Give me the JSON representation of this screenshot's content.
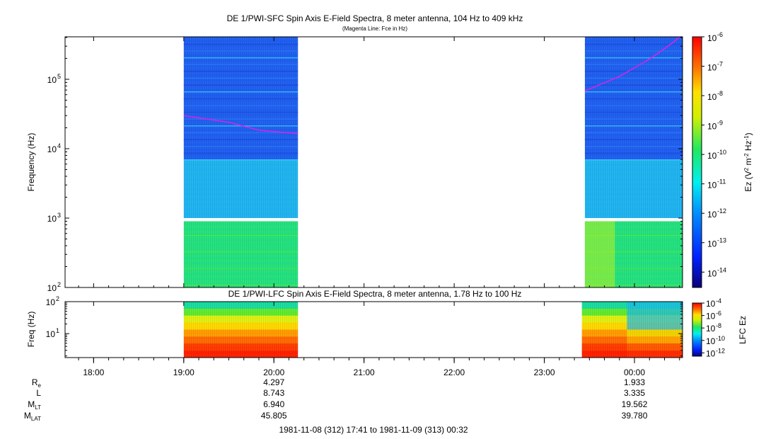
{
  "chart_data": [
    {
      "type": "heatmap",
      "title": "DE 1/PWI-SFC  Spin Axis E-Field Spectra, 8 meter antenna, 104 Hz to 409 kHz",
      "subtitle": "(Magenta Line: Fce in Hz)",
      "ylabel": "Frequency (Hz)",
      "yscale": "log",
      "ylim": [
        100,
        409000
      ],
      "yticks": [
        {
          "value": 100,
          "base": "10",
          "exp": "2"
        },
        {
          "value": 1000,
          "base": "10",
          "exp": "3"
        },
        {
          "value": 10000,
          "base": "10",
          "exp": "4"
        },
        {
          "value": 100000,
          "base": "10",
          "exp": "5"
        }
      ],
      "colorbar": {
        "label_parts": [
          "Ez (V",
          "2",
          " m",
          "-2",
          " Hz",
          "-1",
          ")"
        ],
        "scale": "log",
        "range": [
          3e-15,
          1e-06
        ],
        "ticks": [
          {
            "value": 1e-06,
            "base": "10",
            "exp": "-6"
          },
          {
            "value": 1e-07,
            "base": "10",
            "exp": "-7"
          },
          {
            "value": 1e-08,
            "base": "10",
            "exp": "-8"
          },
          {
            "value": 1e-09,
            "base": "10",
            "exp": "-9"
          },
          {
            "value": 1e-10,
            "base": "10",
            "exp": "-10"
          },
          {
            "value": 1e-11,
            "base": "10",
            "exp": "-11"
          },
          {
            "value": 1e-12,
            "base": "10",
            "exp": "-12"
          },
          {
            "value": 1e-13,
            "base": "10",
            "exp": "-13"
          },
          {
            "value": 1e-14,
            "base": "10",
            "exp": "-14"
          }
        ]
      },
      "data_segments": [
        {
          "start": "19:00",
          "end": "20:16"
        },
        {
          "start": "23:27",
          "end": "00:32"
        }
      ],
      "data_gap_hz": [
        900,
        1000
      ],
      "fce_line": [
        {
          "time": "19:00",
          "hz": 30000
        },
        {
          "time": "19:30",
          "hz": 24000
        },
        {
          "time": "19:50",
          "hz": 18500
        },
        {
          "time": "20:16",
          "hz": 16500
        },
        {
          "time": "23:27",
          "hz": 68000
        },
        {
          "time": "23:50",
          "hz": 110000
        },
        {
          "time": "00:10",
          "hz": 195000
        },
        {
          "time": "00:25",
          "hz": 330000
        },
        {
          "time": "00:30",
          "hz": 409000
        }
      ]
    },
    {
      "type": "heatmap",
      "title": "DE 1/PWI-LFC  Spin Axis E-Field Spectra, 8 meter antenna, 1.78 Hz to 100 Hz",
      "ylabel": "Freq (Hz)",
      "yscale": "log",
      "ylim": [
        1.78,
        100
      ],
      "yticks": [
        {
          "value": 10,
          "base": "10",
          "exp": "1"
        },
        {
          "value": 100,
          "base": "10",
          "exp": "2"
        }
      ],
      "colorbar": {
        "label": "LFC Ez",
        "scale": "log",
        "range": [
          3e-13,
          0.0001
        ],
        "ticks": [
          {
            "value": 0.0001,
            "base": "10",
            "exp": "-4"
          },
          {
            "value": 1e-06,
            "base": "10",
            "exp": "-6"
          },
          {
            "value": 1e-08,
            "base": "10",
            "exp": "-8"
          },
          {
            "value": 1e-10,
            "base": "10",
            "exp": "-10"
          },
          {
            "value": 1e-12,
            "base": "10",
            "exp": "-12"
          }
        ]
      },
      "data_segments": [
        {
          "start": "19:00",
          "end": "20:16"
        },
        {
          "start": "23:25",
          "end": "00:32"
        }
      ]
    }
  ],
  "time_axis": {
    "start": "17:41",
    "end": "00:32",
    "tick_labels": [
      "18:00",
      "19:00",
      "20:00",
      "21:00",
      "22:00",
      "23:00",
      "00:00"
    ],
    "range_label": "1981-11-08 (312) 17:41 to 1981-11-09 (313) 00:32"
  },
  "ephemeris": {
    "rows": [
      {
        "label": "R",
        "sub": "e",
        "values": [
          "4.297",
          "1.933"
        ]
      },
      {
        "label": "L",
        "sub": "",
        "values": [
          "8.743",
          "3.335"
        ]
      },
      {
        "label": "M",
        "sub": "LT",
        "values": [
          "6.940",
          "19.562"
        ]
      },
      {
        "label": "M",
        "sub": "LAT",
        "values": [
          "45.805",
          "39.780"
        ]
      }
    ],
    "at_times": [
      "20:00",
      "00:00"
    ]
  }
}
